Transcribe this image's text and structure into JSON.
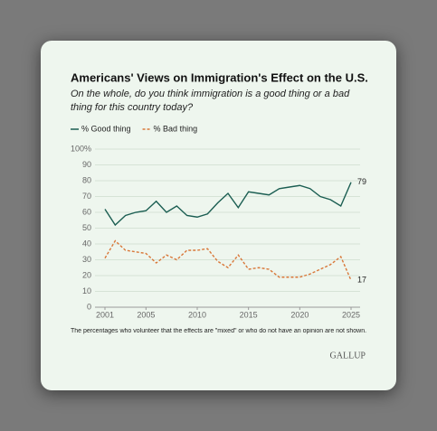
{
  "chart_data": {
    "type": "line",
    "title": "Americans' Views on Immigration's Effect on the U.S.",
    "subtitle": "On the whole, do you think immigration is a good thing or a bad thing for this country today?",
    "note": "The percentages who volunteer that the effects are \"mixed\" or who do not have an opinion are not shown.",
    "source": "GALLUP",
    "x": [
      2001,
      2002,
      2003,
      2004,
      2005,
      2006,
      2007,
      2008,
      2009,
      2010,
      2011,
      2012,
      2013,
      2014,
      2015,
      2016,
      2017,
      2018,
      2019,
      2020,
      2021,
      2022,
      2023,
      2024,
      2025
    ],
    "series": [
      {
        "name": "% Good thing",
        "color": "#1b5e52",
        "dashed": false,
        "values": [
          62,
          52,
          58,
          60,
          61,
          67,
          60,
          64,
          58,
          57,
          59,
          66,
          72,
          63,
          73,
          72,
          71,
          75,
          76,
          77,
          75,
          70,
          68,
          64,
          79
        ]
      },
      {
        "name": "% Bad thing",
        "color": "#d9783a",
        "dashed": true,
        "values": [
          31,
          42,
          36,
          35,
          34,
          28,
          33,
          30,
          36,
          36,
          37,
          29,
          25,
          33,
          24,
          25,
          24,
          19,
          19,
          19,
          21,
          24,
          27,
          32,
          17
        ]
      }
    ],
    "xlim": [
      2001,
      2025
    ],
    "xticks": [
      2001,
      2005,
      2010,
      2015,
      2020,
      2025
    ],
    "ylim": [
      0,
      100
    ],
    "yticks": [
      0,
      10,
      20,
      30,
      40,
      50,
      60,
      70,
      80,
      90,
      {
        "value": 100,
        "label": "100%"
      }
    ],
    "grid": true
  }
}
